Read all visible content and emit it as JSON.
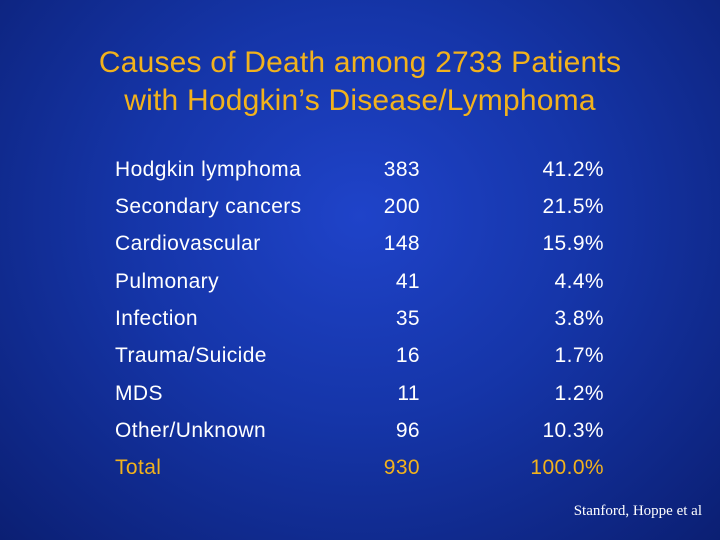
{
  "slide": {
    "title_line1": "Causes of Death among 2733 Patients",
    "title_line2": "with Hodgkin’s Disease/Lymphoma",
    "credit": "Stanford, Hoppe et al"
  },
  "table": {
    "rows": [
      {
        "cause": "Hodgkin lymphoma",
        "count": "383",
        "percent": "41.2%"
      },
      {
        "cause": "Secondary cancers",
        "count": "200",
        "percent": "21.5%"
      },
      {
        "cause": "Cardiovascular",
        "count": "148",
        "percent": "15.9%"
      },
      {
        "cause": "Pulmonary",
        "count": "41",
        "percent": "4.4%"
      },
      {
        "cause": "Infection",
        "count": "35",
        "percent": "3.8%"
      },
      {
        "cause": "Trauma/Suicide",
        "count": "16",
        "percent": "1.7%"
      },
      {
        "cause": "MDS",
        "count": "11",
        "percent": "1.2%"
      },
      {
        "cause": "Other/Unknown",
        "count": "96",
        "percent": "10.3%"
      }
    ],
    "total": {
      "cause": "Total",
      "count": "930",
      "percent": "100.0%"
    }
  },
  "colors": {
    "background": "#1535a8",
    "title": "#f2b21c",
    "text": "#ffffff",
    "total": "#f2b21c"
  }
}
